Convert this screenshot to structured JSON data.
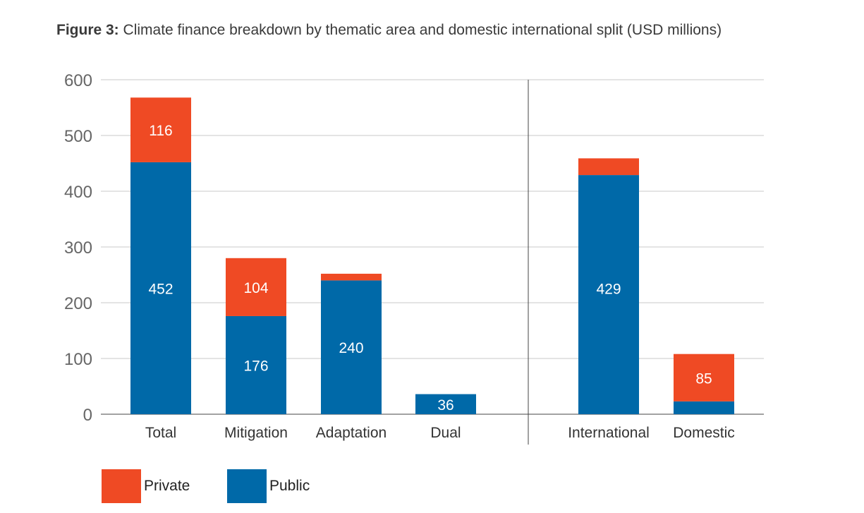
{
  "title": {
    "bold": "Figure 3:",
    "text": "Climate finance breakdown by thematic area and domestic international split (USD millions)"
  },
  "colors": {
    "private": "#ef4a24",
    "public": "#0069a8",
    "grid": "#c8c8c8",
    "axis": "#444444"
  },
  "legend": [
    {
      "name": "Private",
      "color": "#ef4a24"
    },
    {
      "name": "Public",
      "color": "#0069a8"
    }
  ],
  "chart_data": {
    "type": "bar",
    "stacked": true,
    "categories": [
      "Total",
      "Mitigation",
      "Adaptation",
      "Dual",
      "International",
      "Domestic"
    ],
    "groups": [
      [
        "Total",
        "Mitigation",
        "Adaptation",
        "Dual"
      ],
      [
        "International",
        "Domestic"
      ]
    ],
    "series": [
      {
        "name": "Public",
        "values": [
          452,
          176,
          240,
          36,
          429,
          23
        ]
      },
      {
        "name": "Private",
        "values": [
          116,
          104,
          12,
          0,
          30,
          85
        ]
      }
    ],
    "data_labels": {
      "Public": [
        "452",
        "176",
        "240",
        "36",
        "429",
        ""
      ],
      "Private": [
        "116",
        "104",
        "",
        "",
        "",
        "85"
      ]
    },
    "yticks": [
      0,
      100,
      200,
      300,
      400,
      500,
      600
    ],
    "ylim": [
      0,
      600
    ],
    "grid": true,
    "legend_position": "bottom-left"
  }
}
